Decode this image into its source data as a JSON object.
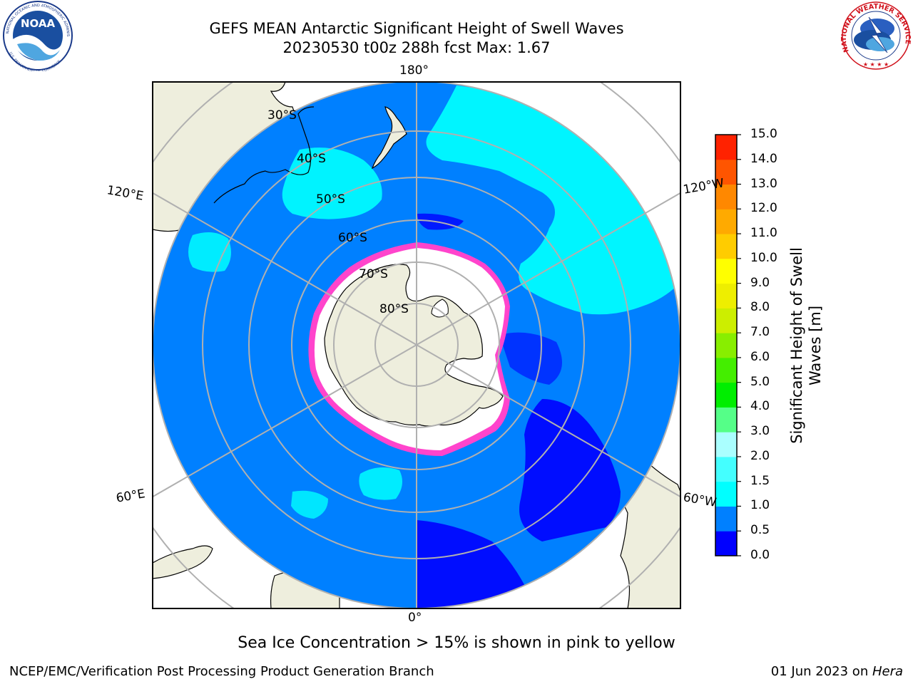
{
  "header": {
    "title": "GEFS MEAN Antarctic Significant Height of Swell Waves",
    "subtitle": "20230530 t00z 288h fcst   Max: 1.67"
  },
  "logos": {
    "left": {
      "name": "NOAA",
      "ring_text": "NATIONAL OCEANIC AND ATMOSPHERIC ADMINISTRATION",
      "bottom_text": "U.S. DEPARTMENT OF COMMERCE"
    },
    "right": {
      "ring_text": "NATIONAL WEATHER SERVICE"
    }
  },
  "map": {
    "longitude_labels": {
      "top": "180°",
      "bottom": "0°",
      "upper_left": "120°E",
      "upper_right": "120°W",
      "lower_left": "60°E",
      "lower_right": "60°W"
    },
    "latitude_labels": [
      "30°S",
      "40°S",
      "50°S",
      "60°S",
      "70°S",
      "80°S"
    ],
    "colors": {
      "ocean_low": "#0000ff",
      "ocean": "#0080ff",
      "swell_high": "#00ffff",
      "land": "#eeeedd",
      "sea_ice": "#ffffff",
      "ice_edge": "#ff44cc",
      "grid": "#b0b0b0"
    }
  },
  "colorbar": {
    "title_line1": "Significant Height of Swell",
    "title_line2": "Waves [m]",
    "ticks": [
      "0.0",
      "0.5",
      "1.0",
      "1.5",
      "2.0",
      "3.0",
      "4.0",
      "5.0",
      "6.0",
      "7.0",
      "8.0",
      "9.0",
      "10.0",
      "11.0",
      "12.0",
      "13.0",
      "14.0",
      "15.0"
    ],
    "colors": [
      "#0000ff",
      "#0080ff",
      "#00ffff",
      "#44ffff",
      "#aaffff",
      "#55ff88",
      "#00ee00",
      "#44ee00",
      "#88ee00",
      "#ccee00",
      "#eeee00",
      "#ffff00",
      "#ffcc00",
      "#ffaa00",
      "#ff8800",
      "#ff5500",
      "#ff2200"
    ]
  },
  "footer": {
    "note": "Sea Ice Concentration > 15% is shown in pink to yellow",
    "left": "NCEP/EMC/Verification Post Processing Product Generation Branch",
    "right_prefix": "01 Jun 2023 on ",
    "right_host": "Hera"
  }
}
